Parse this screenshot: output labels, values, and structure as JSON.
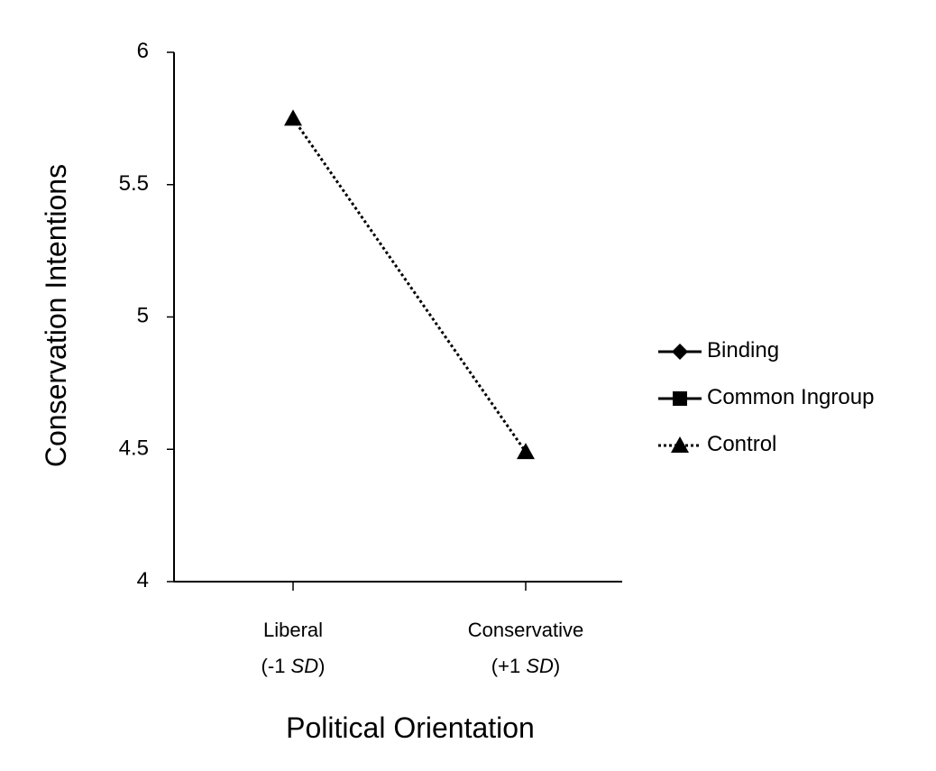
{
  "chart_data": {
    "type": "line",
    "x_label": "Political Orientation",
    "y_label": "Conservation Intentions",
    "categories": [
      [
        "Liberal",
        "(-1 SD)"
      ],
      [
        "Conservative",
        "(+1 SD)"
      ]
    ],
    "series": [
      {
        "name": "Binding",
        "color": "#000000",
        "marker": "diamond",
        "dash": "solid",
        "values": [
          null,
          null
        ]
      },
      {
        "name": "Common Ingroup",
        "color": "#000000",
        "marker": "square",
        "dash": "solid",
        "values": [
          null,
          null
        ]
      },
      {
        "name": "Control",
        "color": "#000000",
        "marker": "triangle",
        "dash": "dotted",
        "values": [
          5.75,
          4.49
        ]
      }
    ],
    "ylim": [
      4,
      6
    ],
    "yticks": [
      4,
      4.5,
      5,
      5.5,
      6
    ],
    "grid": false,
    "legend": "right"
  }
}
